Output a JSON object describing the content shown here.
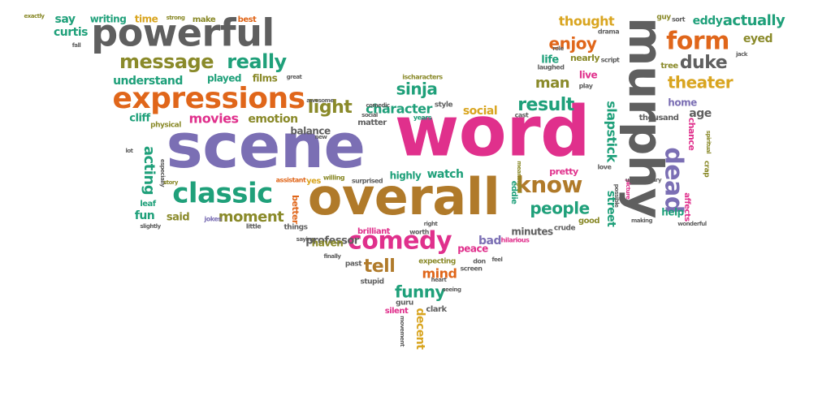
{
  "palette": {
    "gray": "#5f5f5f",
    "magenta": "#e0308c",
    "purple": "#7b6fb4",
    "brown": "#b07a2a",
    "orange": "#e0661a",
    "teal": "#1fa07a",
    "olive": "#8a8a2a",
    "gold": "#d9a520"
  },
  "words": [
    {
      "text": "word",
      "color": "magenta"
    },
    {
      "text": "scene",
      "color": "purple"
    },
    {
      "text": "overall",
      "color": "brown"
    },
    {
      "text": "murphy",
      "color": "gray"
    },
    {
      "text": "powerful",
      "color": "gray"
    },
    {
      "text": "expressions",
      "color": "orange"
    },
    {
      "text": "classic",
      "color": "teal"
    },
    {
      "text": "comedy",
      "color": "magenta"
    },
    {
      "text": "message",
      "color": "olive"
    },
    {
      "text": "really",
      "color": "teal"
    },
    {
      "text": "form",
      "color": "orange"
    },
    {
      "text": "dead",
      "color": "purple"
    },
    {
      "text": "know",
      "color": "brown"
    },
    {
      "text": "people",
      "color": "teal"
    },
    {
      "text": "duke",
      "color": "gray"
    },
    {
      "text": "theater",
      "color": "gold"
    },
    {
      "text": "actually",
      "color": "teal"
    },
    {
      "text": "eyed",
      "color": "olive"
    },
    {
      "text": "thought",
      "color": "gold"
    },
    {
      "text": "enjoy",
      "color": "orange"
    },
    {
      "text": "result",
      "color": "teal"
    },
    {
      "text": "man",
      "color": "olive"
    },
    {
      "text": "sinja",
      "color": "teal"
    },
    {
      "text": "light",
      "color": "olive"
    },
    {
      "text": "character",
      "color": "teal"
    },
    {
      "text": "social",
      "color": "gold"
    },
    {
      "text": "slapstick",
      "color": "teal"
    },
    {
      "text": "street",
      "color": "teal"
    },
    {
      "text": "funny",
      "color": "teal"
    },
    {
      "text": "tell",
      "color": "brown"
    },
    {
      "text": "mind",
      "color": "orange"
    },
    {
      "text": "acting",
      "color": "teal"
    },
    {
      "text": "moment",
      "color": "olive"
    },
    {
      "text": "movies",
      "color": "magenta"
    },
    {
      "text": "emotion",
      "color": "olive"
    },
    {
      "text": "understand",
      "color": "teal"
    },
    {
      "text": "played",
      "color": "teal"
    },
    {
      "text": "films",
      "color": "olive"
    },
    {
      "text": "curtis",
      "color": "teal"
    },
    {
      "text": "say",
      "color": "teal"
    },
    {
      "text": "writing",
      "color": "teal"
    },
    {
      "text": "time",
      "color": "gold"
    },
    {
      "text": "make",
      "color": "olive"
    },
    {
      "text": "best",
      "color": "orange"
    },
    {
      "text": "strong",
      "color": "olive"
    },
    {
      "text": "exactly",
      "color": "olive"
    },
    {
      "text": "fall",
      "color": "gray"
    },
    {
      "text": "cliff",
      "color": "teal"
    },
    {
      "text": "physical",
      "color": "olive"
    },
    {
      "text": "fun",
      "color": "teal"
    },
    {
      "text": "said",
      "color": "olive"
    },
    {
      "text": "leaf",
      "color": "teal"
    },
    {
      "text": "professor",
      "color": "gray"
    },
    {
      "text": "balance",
      "color": "gray"
    },
    {
      "text": "better",
      "color": "orange"
    },
    {
      "text": "haven",
      "color": "olive"
    },
    {
      "text": "brilliant",
      "color": "magenta"
    },
    {
      "text": "highly",
      "color": "teal"
    },
    {
      "text": "watch",
      "color": "teal"
    },
    {
      "text": "yes",
      "color": "gold"
    },
    {
      "text": "bad",
      "color": "purple"
    },
    {
      "text": "peace",
      "color": "magenta"
    },
    {
      "text": "minutes",
      "color": "gray"
    },
    {
      "text": "eddie",
      "color": "teal"
    },
    {
      "text": "pretty",
      "color": "magenta"
    },
    {
      "text": "home",
      "color": "purple"
    },
    {
      "text": "age",
      "color": "gray"
    },
    {
      "text": "thousand",
      "color": "gray"
    },
    {
      "text": "chance",
      "color": "magenta"
    },
    {
      "text": "help",
      "color": "teal"
    },
    {
      "text": "affects",
      "color": "magenta"
    },
    {
      "text": "crap",
      "color": "olive"
    },
    {
      "text": "live",
      "color": "magenta"
    },
    {
      "text": "life",
      "color": "teal"
    },
    {
      "text": "nearly",
      "color": "olive"
    },
    {
      "text": "laughed",
      "color": "gray"
    },
    {
      "text": "eddy",
      "color": "teal"
    },
    {
      "text": "tree",
      "color": "olive"
    },
    {
      "text": "decent",
      "color": "gold"
    },
    {
      "text": "clark",
      "color": "gray"
    },
    {
      "text": "silent",
      "color": "magenta"
    },
    {
      "text": "guru",
      "color": "gray"
    },
    {
      "text": "stupid",
      "color": "gray"
    },
    {
      "text": "past",
      "color": "gray"
    },
    {
      "text": "expecting",
      "color": "olive"
    },
    {
      "text": "don",
      "color": "gray"
    },
    {
      "text": "good",
      "color": "olive"
    },
    {
      "text": "crude",
      "color": "gray"
    },
    {
      "text": "worth",
      "color": "gray"
    },
    {
      "text": "things",
      "color": "gray"
    },
    {
      "text": "little",
      "color": "gray"
    },
    {
      "text": "jokes",
      "color": "purple"
    },
    {
      "text": "matter",
      "color": "gray"
    },
    {
      "text": "years",
      "color": "teal"
    },
    {
      "text": "style",
      "color": "gray"
    },
    {
      "text": "cast",
      "color": "gray"
    },
    {
      "text": "surprised",
      "color": "gray"
    },
    {
      "text": "willing",
      "color": "olive"
    },
    {
      "text": "assistant",
      "color": "orange"
    },
    {
      "text": "especially",
      "color": "gray"
    },
    {
      "text": "story",
      "color": "olive"
    },
    {
      "text": "picture",
      "color": "magenta"
    },
    {
      "text": "love",
      "color": "gray"
    },
    {
      "text": "role",
      "color": "gray"
    },
    {
      "text": "drama",
      "color": "gray"
    },
    {
      "text": "script",
      "color": "gray"
    },
    {
      "text": "play",
      "color": "gray"
    },
    {
      "text": "guy",
      "color": "olive"
    },
    {
      "text": "sort",
      "color": "gray"
    },
    {
      "text": "jack",
      "color": "gray"
    },
    {
      "text": "spiritual",
      "color": "olive"
    },
    {
      "text": "hilarious",
      "color": "magenta"
    },
    {
      "text": "screen",
      "color": "gray"
    },
    {
      "text": "meaningful",
      "color": "olive"
    },
    {
      "text": "unnecessary",
      "color": "gray"
    },
    {
      "text": "making",
      "color": "gray"
    },
    {
      "text": "wonderful",
      "color": "gray"
    },
    {
      "text": "ischaracters",
      "color": "olive"
    },
    {
      "text": "seeing",
      "color": "gray"
    },
    {
      "text": "great",
      "color": "gray"
    },
    {
      "text": "comedic",
      "color": "gray"
    },
    {
      "text": "new",
      "color": "gray"
    },
    {
      "text": "social",
      "color": "gray"
    },
    {
      "text": "awesome",
      "color": "gray"
    },
    {
      "text": "feel",
      "color": "gray"
    },
    {
      "text": "finally",
      "color": "gray"
    },
    {
      "text": "heart",
      "color": "gray"
    },
    {
      "text": "right",
      "color": "gray"
    },
    {
      "text": "saying",
      "color": "gray"
    },
    {
      "text": "movement",
      "color": "gray"
    },
    {
      "text": "lot",
      "color": "gray"
    },
    {
      "text": "slightly",
      "color": "gray"
    },
    {
      "text": "possible",
      "color": "gray"
    }
  ]
}
